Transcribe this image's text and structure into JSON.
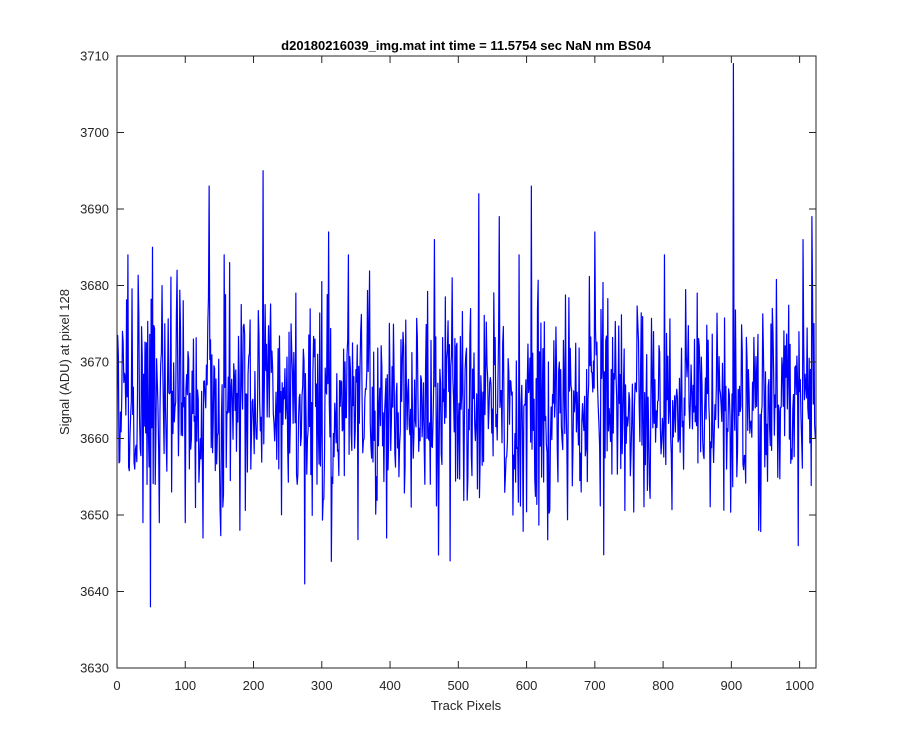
{
  "chart_data": {
    "type": "line",
    "title": "d20180216039_img.mat int time = 11.5754 sec  NaN nm BS04",
    "xlabel": "Track Pixels",
    "ylabel": "Signal (ADU) at pixel 128",
    "xlim": [
      0,
      1024
    ],
    "ylim": [
      3630,
      3710
    ],
    "xticks": [
      "0",
      "100",
      "200",
      "300",
      "400",
      "500",
      "600",
      "700",
      "800",
      "900",
      "1000"
    ],
    "yticks": [
      "3630",
      "3640",
      "3650",
      "3660",
      "3670",
      "3680",
      "3690",
      "3700",
      "3710"
    ],
    "grid": false,
    "legend": "none",
    "series": [
      {
        "color": "#0000ff",
        "noise_mean": 3665,
        "noise_std": 7,
        "x": [
          0,
          4,
          8,
          12,
          16,
          20,
          26,
          32,
          38,
          44,
          49,
          52,
          56,
          62,
          70,
          80,
          88,
          100,
          112,
          126,
          135,
          150,
          165,
          180,
          196,
          210,
          214,
          230,
          250,
          262,
          275,
          290,
          310,
          330,
          350,
          380,
          395,
          420,
          450,
          465,
          488,
          500,
          530,
          560,
          580,
          607,
          620,
          650,
          680,
          700,
          720,
          750,
          780,
          800,
          830,
          850,
          880,
          900,
          903,
          908,
          925,
          940,
          960,
          980,
          998,
          1005,
          1012,
          1018,
          1023
        ],
        "y": [
          3660,
          3657,
          3674,
          3668,
          3684,
          3663,
          3656,
          3676,
          3649,
          3654,
          3638,
          3685,
          3654,
          3649,
          3675,
          3653,
          3682,
          3649,
          3673,
          3647,
          3693,
          3658,
          3683,
          3648,
          3656,
          3661,
          3695,
          3662,
          3659,
          3679,
          3641,
          3673,
          3687,
          3661,
          3669,
          3655,
          3647,
          3672,
          3659,
          3686,
          3644,
          3662,
          3692,
          3689,
          3650,
          3693,
          3659,
          3669,
          3653,
          3687,
          3661,
          3666,
          3654,
          3661,
          3656,
          3679,
          3669,
          3660,
          3709,
          3655,
          3669,
          3648,
          3677,
          3668,
          3646,
          3686,
          3664,
          3689,
          3660
        ]
      }
    ]
  }
}
